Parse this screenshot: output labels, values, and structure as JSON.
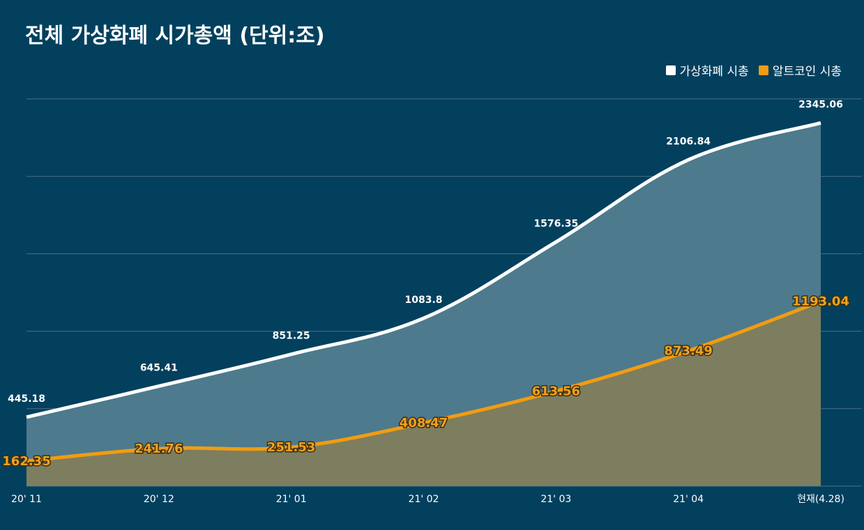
{
  "header": {
    "title": "전체 가상화폐 시가총액 (단위:조)"
  },
  "legend": [
    {
      "label": "가상화폐 시총",
      "color": "#ffffff"
    },
    {
      "label": "알트코인 시총",
      "color": "#f29c11"
    }
  ],
  "chart_data": {
    "type": "area",
    "title": "전체 가상화폐 시가총액 (단위:조)",
    "categories": [
      "20' 11",
      "20' 12",
      "21' 01",
      "21' 02",
      "21' 03",
      "21' 04",
      "현재(4.28)"
    ],
    "series": [
      {
        "name": "가상화폐 시총",
        "values": [
          445.18,
          645.41,
          851.25,
          1083.8,
          1576.35,
          2106.84,
          2345.06
        ],
        "color": "#ffffff",
        "fill": "#4d7a8d"
      },
      {
        "name": "알트코인 시총",
        "values": [
          162.35,
          241.76,
          251.53,
          408.47,
          613.56,
          873.49,
          1193.04
        ],
        "color": "#f29c11",
        "fill": "#7d7e5f"
      }
    ],
    "ylim": [
      0,
      2500
    ],
    "grid": true,
    "legend_position": "top-right",
    "xlabel": "",
    "ylabel": ""
  }
}
